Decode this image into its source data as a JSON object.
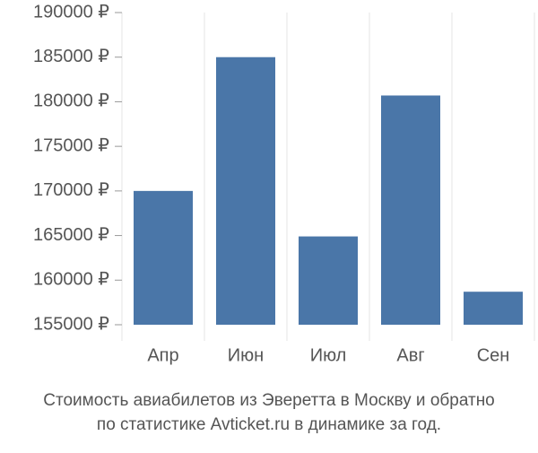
{
  "chart_data": {
    "type": "bar",
    "title": [
      "Стоимость авиабилетов из Эверетта в Москву и обратно",
      "по статистике Avticket.ru в динамике за год."
    ],
    "categories": [
      "Апр",
      "Июн",
      "Июл",
      "Авг",
      "Сен"
    ],
    "values": [
      170000,
      185000,
      164900,
      180700,
      158700
    ],
    "color": "#4a76a8",
    "ylim": [
      155000,
      190000
    ],
    "yticks": [
      {
        "value": 155000,
        "label": "155000 ₽"
      },
      {
        "value": 160000,
        "label": "160000 ₽"
      },
      {
        "value": 165000,
        "label": "165000 ₽"
      },
      {
        "value": 170000,
        "label": "170000 ₽"
      },
      {
        "value": 175000,
        "label": "175000 ₽"
      },
      {
        "value": 180000,
        "label": "180000 ₽"
      },
      {
        "value": 185000,
        "label": "185000 ₽"
      },
      {
        "value": 190000,
        "label": "190000 ₽"
      }
    ]
  }
}
